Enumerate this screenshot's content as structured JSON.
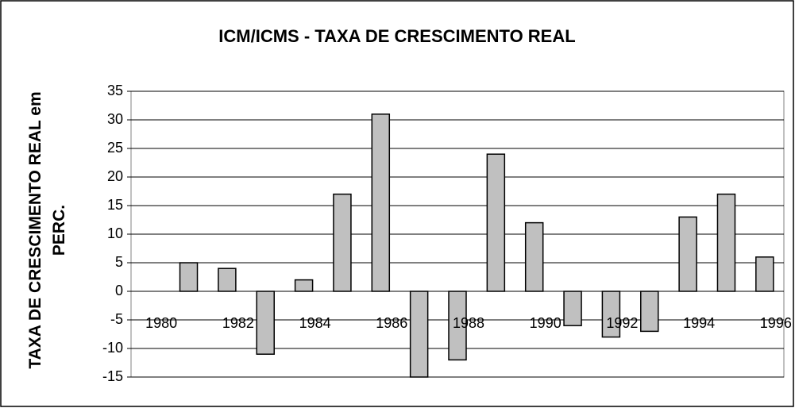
{
  "chart_data": {
    "type": "bar",
    "title": "ICM/ICMS - TAXA DE CRESCIMENTO REAL",
    "y_label": "TAXA DE CRESCIMENTO REAL em PERC.",
    "categories": [
      "1980",
      null,
      "1982",
      null,
      "1984",
      null,
      "1986",
      null,
      "1988",
      null,
      "1990",
      null,
      "1992",
      null,
      "1994",
      null,
      "1996"
    ],
    "values": [
      null,
      5,
      4,
      -11,
      2,
      17,
      31,
      -15,
      -12,
      24,
      12,
      -6,
      -8,
      -7,
      13,
      17,
      6
    ],
    "color": "#c0c0c0",
    "ylim": [
      -15,
      35
    ],
    "yticks": [
      -15,
      -10,
      -5,
      0,
      5,
      10,
      15,
      20,
      25,
      30,
      35
    ],
    "grid": true
  }
}
